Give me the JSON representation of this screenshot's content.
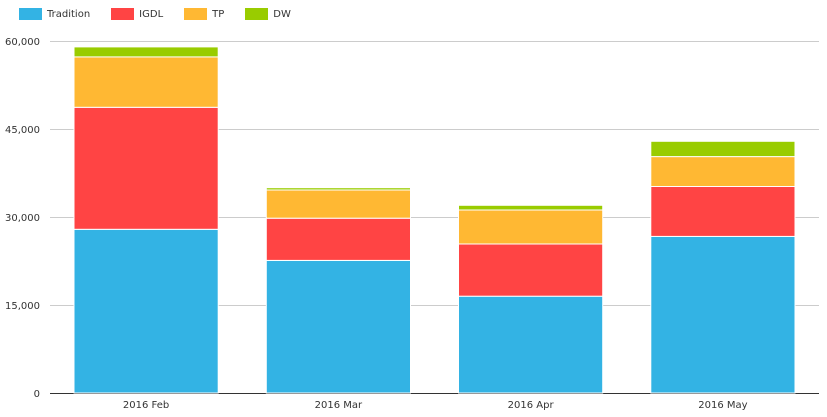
{
  "chart_data": {
    "type": "bar",
    "stacked": true,
    "categories": [
      "2016 Feb",
      "2016 Mar",
      "2016 Apr",
      "2016 May"
    ],
    "series": [
      {
        "name": "Tradition",
        "color": "#33b3e4",
        "values": [
          27900,
          22600,
          16500,
          26700
        ]
      },
      {
        "name": "IGDL",
        "color": "#ff4444",
        "values": [
          20800,
          7200,
          8900,
          8500
        ]
      },
      {
        "name": "TP",
        "color": "#ffb833",
        "values": [
          8600,
          4800,
          5800,
          5100
        ]
      },
      {
        "name": "DW",
        "color": "#99cc00",
        "values": [
          1700,
          400,
          800,
          2600
        ]
      }
    ],
    "yticks": [
      "0",
      "15,000",
      "30,000",
      "45,000",
      "60,000"
    ],
    "ylim": [
      0,
      60000
    ],
    "grid": true,
    "legend_position": "top-left"
  }
}
